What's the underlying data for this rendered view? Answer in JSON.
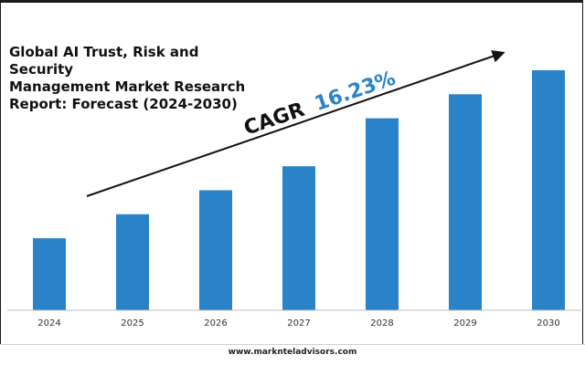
{
  "title_lines": [
    "Global AI Trust, Risk and Security",
    "Management Market Research",
    "Report: Forecast (2024-2030)"
  ],
  "cagr": {
    "label": "CAGR",
    "value": "16.23%"
  },
  "footer": {
    "website": "www.marknteladvisors.com"
  },
  "colors": {
    "bar": "#2a83c9",
    "cagr_value": "#2a83c9",
    "text": "#111111"
  },
  "chart_data": {
    "type": "bar",
    "title": "Global AI Trust, Risk and Security Management Market Research Report: Forecast (2024-2030)",
    "categories": [
      "2024",
      "2025",
      "2026",
      "2027",
      "2028",
      "2029",
      "2030"
    ],
    "values": [
      30,
      40,
      50,
      60,
      80,
      90,
      100
    ],
    "xlabel": "",
    "ylabel": "",
    "ylim": [
      0,
      100
    ],
    "grid": false,
    "legend": "none"
  }
}
